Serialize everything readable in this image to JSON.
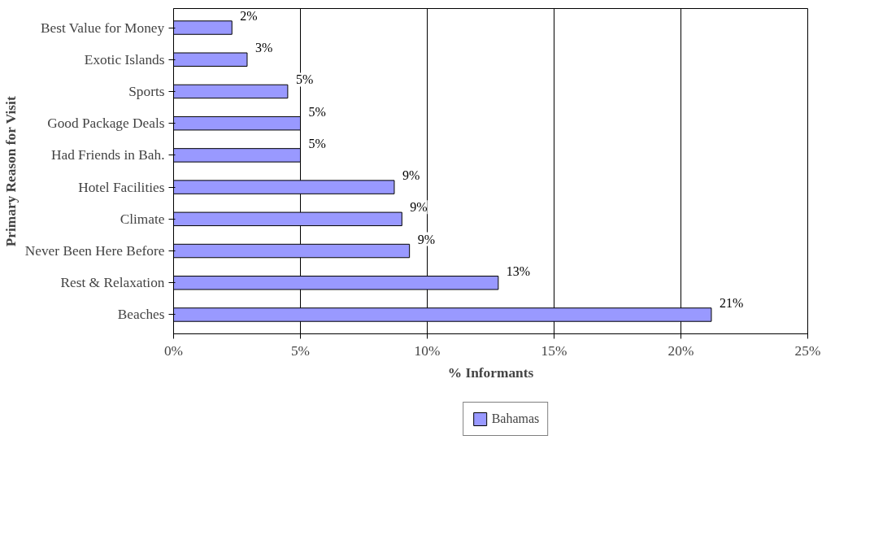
{
  "chart_data": {
    "type": "bar",
    "orientation": "horizontal",
    "xlabel": "% Informants",
    "ylabel": "Primary Reason for Visit",
    "categories": [
      "Best Value for Money",
      "Exotic Islands",
      "Sports",
      "Good Package Deals",
      "Had Friends in Bah.",
      "Hotel Facilities",
      "Climate",
      "Never Been Here Before",
      "Rest & Relaxation",
      "Beaches"
    ],
    "series": [
      {
        "name": "Bahamas",
        "color": "#9999ff",
        "values": [
          2.3,
          2.9,
          4.5,
          5.0,
          5.0,
          8.7,
          9.0,
          9.3,
          12.8,
          21.2
        ],
        "value_labels": [
          "2%",
          "3%",
          "5%",
          "5%",
          "5%",
          "9%",
          "9%",
          "9%",
          "13%",
          "21%"
        ]
      }
    ],
    "xlim": [
      0,
      25
    ],
    "xticks": [
      {
        "value": 0,
        "label": "0%"
      },
      {
        "value": 5,
        "label": "5%"
      },
      {
        "value": 10,
        "label": "10%"
      },
      {
        "value": 15,
        "label": "15%"
      },
      {
        "value": 20,
        "label": "20%"
      },
      {
        "value": 25,
        "label": "25%"
      }
    ],
    "grid": "x",
    "legend": "bottom"
  }
}
